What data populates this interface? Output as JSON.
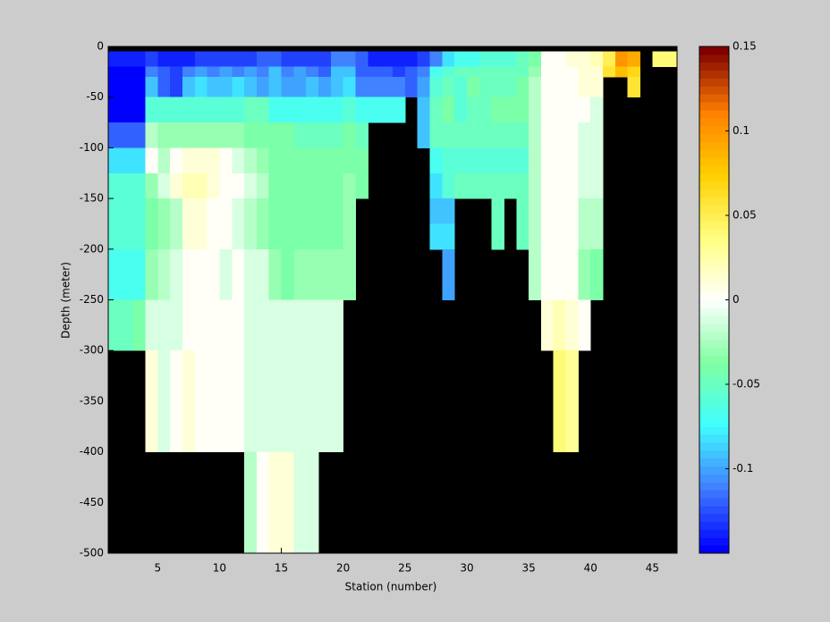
{
  "chart_data": {
    "type": "heatmap",
    "xlabel": "Station (number)",
    "ylabel": "Depth (meter)",
    "xlim": [
      1,
      47
    ],
    "xticks": [
      5,
      10,
      15,
      20,
      25,
      30,
      35,
      40,
      45
    ],
    "ylim": [
      -500,
      0
    ],
    "yticks": [
      -500,
      -450,
      -400,
      -350,
      -300,
      -250,
      -200,
      -150,
      -100,
      -50,
      0
    ],
    "clim": [
      -0.15,
      0.15
    ],
    "cticks": [
      -0.1,
      -0.05,
      0,
      0.05,
      0.1,
      0.15
    ],
    "colormap": [
      "#0000ff",
      "#4080ff",
      "#40ffff",
      "#80ffa0",
      "#ffffff",
      "#ffff80",
      "#ffd000",
      "#ff8000",
      "#800000"
    ],
    "axes_color": "#000000",
    "x_edges": [
      1,
      2,
      3,
      4,
      5,
      6,
      7,
      8,
      9,
      10,
      11,
      12,
      13,
      14,
      15,
      16,
      17,
      18,
      19,
      20,
      21,
      22,
      23,
      24,
      25,
      26,
      27,
      28,
      29,
      30,
      31,
      32,
      33,
      34,
      35,
      36,
      37,
      38,
      39,
      40,
      41,
      42,
      43,
      44,
      45,
      46,
      47
    ],
    "y_edges": [
      0,
      -5,
      -20,
      -30,
      -50,
      -75,
      -100,
      -125,
      -150,
      -175,
      -200,
      -225,
      -250,
      -300,
      -400,
      -500
    ],
    "z": [
      [
        null,
        null,
        null,
        null,
        null,
        null,
        null,
        null,
        null,
        null,
        null,
        null,
        null,
        null,
        null,
        null,
        null,
        null,
        null,
        null,
        null,
        null,
        null,
        null,
        null,
        null,
        null,
        null,
        null,
        null,
        null,
        null,
        null,
        null,
        null,
        null,
        null,
        null,
        null,
        null,
        null,
        null,
        null,
        null,
        null,
        null
      ],
      [
        -0.14,
        -0.14,
        -0.14,
        -0.13,
        -0.14,
        -0.14,
        -0.14,
        -0.13,
        -0.13,
        -0.13,
        -0.13,
        -0.13,
        -0.12,
        -0.12,
        -0.13,
        -0.13,
        -0.13,
        -0.13,
        -0.11,
        -0.11,
        -0.12,
        -0.14,
        -0.14,
        -0.14,
        -0.14,
        -0.13,
        -0.11,
        -0.08,
        -0.07,
        -0.07,
        -0.06,
        -0.06,
        -0.06,
        -0.05,
        -0.04,
        0,
        0,
        0.01,
        0.01,
        0.02,
        0.05,
        0.1,
        0.09,
        null,
        0.04,
        0.04
      ],
      [
        -0.15,
        -0.15,
        -0.15,
        -0.11,
        -0.12,
        -0.13,
        -0.11,
        -0.1,
        -0.11,
        -0.1,
        -0.11,
        -0.1,
        -0.11,
        -0.09,
        -0.11,
        -0.1,
        -0.11,
        -0.12,
        -0.09,
        -0.09,
        -0.12,
        -0.12,
        -0.12,
        -0.13,
        -0.12,
        -0.11,
        -0.07,
        -0.06,
        -0.05,
        -0.05,
        -0.05,
        -0.05,
        -0.05,
        -0.05,
        -0.03,
        0,
        0,
        0,
        0.01,
        0.01,
        0.06,
        0.08,
        0.07,
        null,
        null,
        null
      ],
      [
        -0.15,
        -0.15,
        -0.15,
        -0.09,
        -0.12,
        -0.13,
        -0.09,
        -0.08,
        -0.09,
        -0.09,
        -0.08,
        -0.09,
        -0.1,
        -0.09,
        -0.1,
        -0.1,
        -0.09,
        -0.1,
        -0.09,
        -0.08,
        -0.11,
        -0.11,
        -0.11,
        -0.11,
        -0.12,
        -0.1,
        -0.06,
        -0.05,
        -0.06,
        -0.04,
        -0.05,
        -0.05,
        -0.05,
        -0.04,
        -0.02,
        0,
        0,
        0,
        0.01,
        0.01,
        null,
        null,
        0.06,
        null,
        null,
        null
      ],
      [
        -0.15,
        -0.15,
        -0.15,
        -0.06,
        -0.06,
        -0.06,
        -0.06,
        -0.06,
        -0.06,
        -0.06,
        -0.06,
        -0.05,
        -0.05,
        -0.07,
        -0.07,
        -0.07,
        -0.07,
        -0.07,
        -0.07,
        -0.06,
        -0.07,
        -0.07,
        -0.07,
        -0.07,
        null,
        -0.09,
        -0.05,
        -0.04,
        -0.06,
        -0.05,
        -0.05,
        -0.04,
        -0.04,
        -0.04,
        -0.02,
        0,
        0,
        0,
        0,
        -0.01,
        null,
        null,
        null,
        null,
        null,
        null
      ],
      [
        -0.12,
        -0.12,
        -0.12,
        -0.02,
        -0.03,
        -0.03,
        -0.03,
        -0.03,
        -0.03,
        -0.03,
        -0.03,
        -0.04,
        -0.04,
        -0.04,
        -0.04,
        -0.05,
        -0.05,
        -0.05,
        -0.05,
        -0.04,
        -0.05,
        null,
        null,
        null,
        null,
        -0.09,
        -0.05,
        -0.05,
        -0.05,
        -0.05,
        -0.05,
        -0.05,
        -0.05,
        -0.05,
        -0.02,
        0,
        0,
        0,
        -0.01,
        -0.01,
        null,
        null,
        null,
        null,
        null,
        null
      ],
      [
        -0.08,
        -0.08,
        -0.08,
        0,
        -0.02,
        0,
        0.01,
        0.01,
        0.01,
        0,
        -0.01,
        -0.02,
        -0.03,
        -0.04,
        -0.04,
        -0.04,
        -0.04,
        -0.04,
        -0.04,
        -0.04,
        -0.04,
        null,
        null,
        null,
        null,
        null,
        -0.07,
        -0.06,
        -0.06,
        -0.06,
        -0.06,
        -0.06,
        -0.06,
        -0.06,
        -0.02,
        0,
        0,
        0,
        -0.01,
        -0.01,
        null,
        null,
        null,
        null,
        null,
        null
      ],
      [
        -0.06,
        -0.06,
        -0.06,
        -0.03,
        -0.01,
        0.01,
        0.02,
        0.02,
        0.01,
        0,
        0,
        -0.01,
        -0.02,
        -0.04,
        -0.04,
        -0.04,
        -0.04,
        -0.04,
        -0.04,
        -0.03,
        -0.04,
        null,
        null,
        null,
        null,
        null,
        -0.08,
        -0.06,
        -0.05,
        -0.05,
        -0.05,
        -0.05,
        -0.05,
        -0.05,
        -0.02,
        0,
        0,
        0,
        -0.01,
        -0.01,
        null,
        null,
        null,
        null,
        null,
        null
      ],
      [
        -0.06,
        -0.06,
        -0.06,
        -0.04,
        -0.03,
        -0.02,
        0.01,
        0.01,
        0,
        0,
        -0.01,
        -0.02,
        -0.03,
        -0.04,
        -0.04,
        -0.04,
        -0.04,
        -0.04,
        -0.04,
        -0.03,
        null,
        null,
        null,
        null,
        null,
        null,
        -0.09,
        -0.09,
        null,
        null,
        null,
        -0.05,
        null,
        -0.05,
        -0.02,
        0,
        0,
        0,
        -0.02,
        -0.02,
        null,
        null,
        null,
        null,
        null,
        null
      ],
      [
        -0.06,
        -0.06,
        -0.06,
        -0.04,
        -0.03,
        -0.02,
        0.01,
        0.01,
        0,
        0,
        -0.01,
        -0.02,
        -0.03,
        -0.04,
        -0.04,
        -0.04,
        -0.04,
        -0.04,
        -0.04,
        -0.03,
        null,
        null,
        null,
        null,
        null,
        null,
        -0.08,
        -0.08,
        null,
        null,
        null,
        -0.05,
        null,
        -0.05,
        -0.02,
        0,
        0,
        0,
        -0.02,
        -0.02,
        null,
        null,
        null,
        null,
        null,
        null
      ],
      [
        -0.07,
        -0.07,
        -0.07,
        -0.03,
        -0.02,
        -0.01,
        0,
        0,
        0,
        -0.01,
        0,
        -0.01,
        -0.01,
        -0.03,
        -0.04,
        -0.03,
        -0.03,
        -0.03,
        -0.03,
        -0.03,
        null,
        null,
        null,
        null,
        null,
        null,
        null,
        -0.1,
        null,
        null,
        null,
        null,
        null,
        null,
        -0.02,
        0,
        0,
        0,
        -0.03,
        -0.04,
        null,
        null,
        null,
        null,
        null,
        null
      ],
      [
        -0.07,
        -0.07,
        -0.07,
        -0.03,
        -0.02,
        -0.01,
        0,
        0,
        0,
        -0.01,
        0,
        -0.01,
        -0.01,
        -0.03,
        -0.04,
        -0.03,
        -0.03,
        -0.03,
        -0.03,
        -0.03,
        null,
        null,
        null,
        null,
        null,
        null,
        null,
        -0.1,
        null,
        null,
        null,
        null,
        null,
        null,
        -0.02,
        0,
        0,
        0,
        -0.03,
        -0.04,
        null,
        null,
        null,
        null,
        null,
        null
      ],
      [
        -0.05,
        -0.05,
        -0.04,
        -0.01,
        -0.01,
        -0.01,
        0,
        0,
        0,
        0,
        0,
        -0.01,
        -0.01,
        -0.01,
        -0.01,
        -0.01,
        -0.01,
        -0.01,
        -0.01,
        null,
        null,
        null,
        null,
        null,
        null,
        null,
        null,
        null,
        null,
        null,
        null,
        null,
        null,
        null,
        null,
        0.01,
        0.02,
        0.01,
        0,
        null,
        null,
        null,
        null,
        null,
        null,
        null
      ],
      [
        null,
        null,
        null,
        0.01,
        -0.01,
        0,
        0.01,
        0,
        0,
        0,
        0,
        -0.01,
        -0.01,
        -0.01,
        -0.01,
        -0.01,
        -0.01,
        -0.01,
        -0.01,
        null,
        null,
        null,
        null,
        null,
        null,
        null,
        null,
        null,
        null,
        null,
        null,
        null,
        null,
        null,
        null,
        null,
        0.04,
        0.03,
        null,
        null,
        null,
        null,
        null,
        null,
        null,
        null
      ],
      [
        null,
        null,
        null,
        null,
        null,
        null,
        null,
        null,
        null,
        null,
        null,
        -0.02,
        0,
        0.01,
        0.01,
        -0.01,
        -0.01,
        null,
        null,
        null,
        null,
        null,
        null,
        null,
        null,
        null,
        null,
        null,
        null,
        null,
        null,
        null,
        null,
        null,
        null,
        null,
        null,
        null,
        null,
        null,
        null,
        null,
        null,
        null,
        null,
        null
      ]
    ]
  }
}
